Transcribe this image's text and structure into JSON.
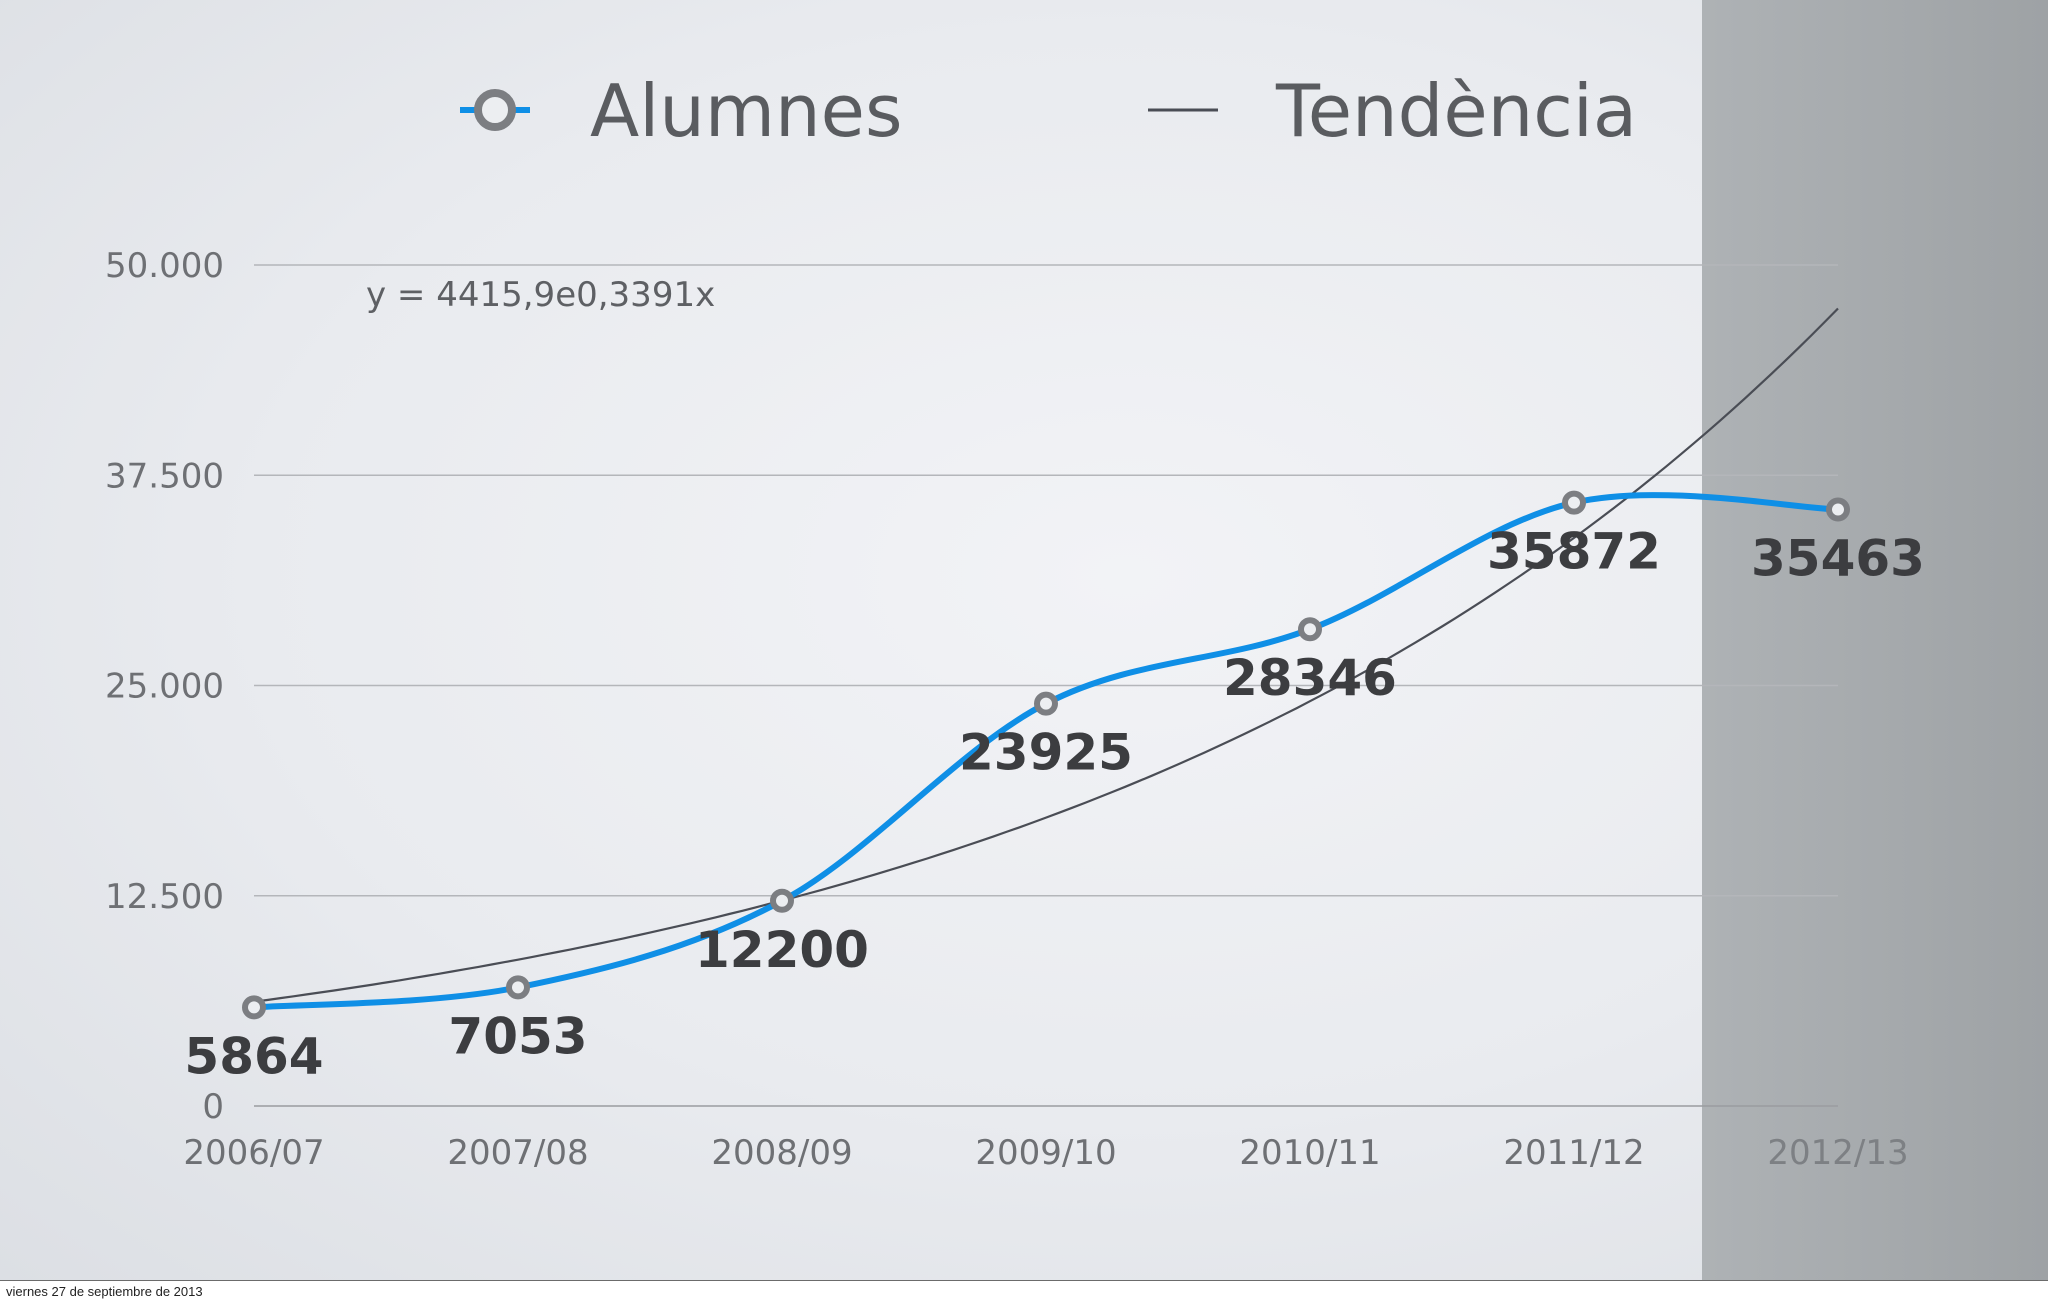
{
  "chart_data": {
    "type": "line",
    "categories": [
      "2006/07",
      "2007/08",
      "2008/09",
      "2009/10",
      "2010/11",
      "2011/12",
      "2012/13"
    ],
    "series": [
      {
        "name": "Alumnes",
        "values": [
          5864,
          7053,
          12200,
          23925,
          28346,
          35872,
          35463
        ],
        "color": "#0f8fe6",
        "smooth": true,
        "markers": "hollow-circle"
      },
      {
        "name": "Tendència",
        "trendline": "exponential",
        "a": 4415.9,
        "b": 0.3391,
        "color": "#4a4d55"
      }
    ],
    "data_labels": [
      "5864",
      "7053",
      "12200",
      "23925",
      "28346",
      "35872",
      "35463"
    ],
    "y_ticks": [
      0,
      12500,
      25000,
      37500,
      50000
    ],
    "y_tick_labels": [
      "0",
      "12.500",
      "25.000",
      "37.500",
      "50.000"
    ],
    "ylim": [
      0,
      50000
    ],
    "grid": true,
    "legend_position": "top",
    "equation": "y = 4415,9e0,3391x",
    "shaded_category": "2012/13",
    "shade_color": "#a3a7aa"
  },
  "footer": {
    "date": "viernes 27 de septiembre de 2013"
  }
}
